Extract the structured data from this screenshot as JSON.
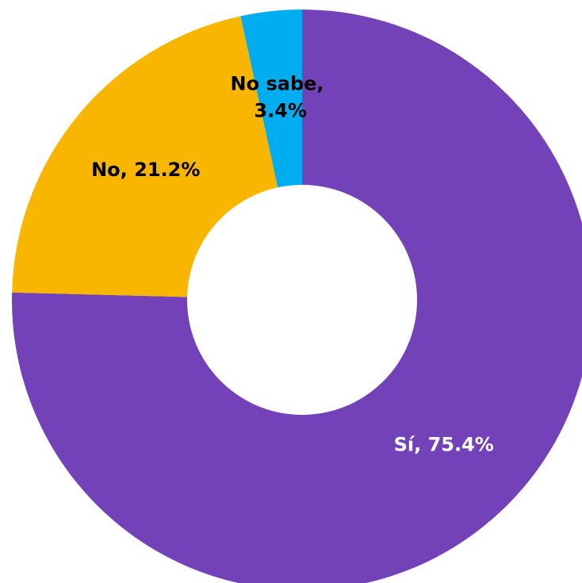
{
  "chart_data": {
    "type": "donut",
    "values": [
      75.4,
      21.2,
      3.4
    ],
    "value_labels": [
      "Sí, 75.4%",
      "No, 21.2%",
      "No sabe, 3.4%"
    ],
    "colors": [
      "#7341b8",
      "#f8b600",
      "#00aeef"
    ]
  }
}
